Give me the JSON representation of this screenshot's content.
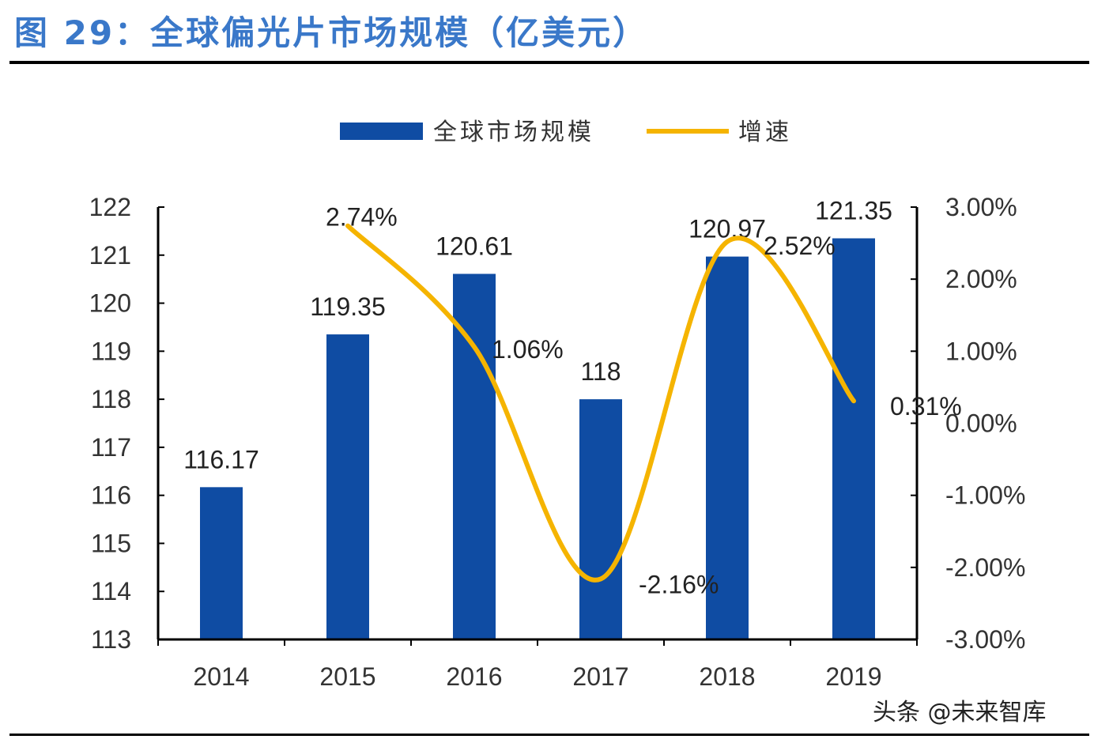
{
  "title": "图 29：全球偏光片市场规模（亿美元）",
  "watermark": "头条 @未来智库",
  "chart_data": {
    "type": "bar",
    "categories": [
      "2014",
      "2015",
      "2016",
      "2017",
      "2018",
      "2019"
    ],
    "series": [
      {
        "name": "全球市场规模",
        "type": "bar",
        "axis": "left",
        "color": "#0F4CA3",
        "values": [
          116.17,
          119.35,
          120.61,
          118,
          120.97,
          121.35
        ],
        "labels": [
          "116.17",
          "119.35",
          "120.61",
          "118",
          "120.97",
          "121.35"
        ]
      },
      {
        "name": "增速",
        "type": "line",
        "axis": "right",
        "smooth": true,
        "color": "#F5B400",
        "values": [
          null,
          2.74,
          1.06,
          -2.16,
          2.52,
          0.31
        ],
        "labels": [
          "",
          "2.74%",
          "1.06%",
          "-2.16%",
          "2.52%",
          "0.31%"
        ]
      }
    ],
    "left_axis": {
      "ylim": [
        113,
        122
      ],
      "ticks": [
        "113",
        "114",
        "115",
        "116",
        "117",
        "118",
        "119",
        "120",
        "121",
        "122"
      ]
    },
    "right_axis": {
      "ylim": [
        -3,
        3
      ],
      "ticks": [
        "-3.00%",
        "-2.00%",
        "-1.00%",
        "0.00%",
        "1.00%",
        "2.00%",
        "3.00%"
      ]
    },
    "grid": false,
    "legend": "top"
  }
}
